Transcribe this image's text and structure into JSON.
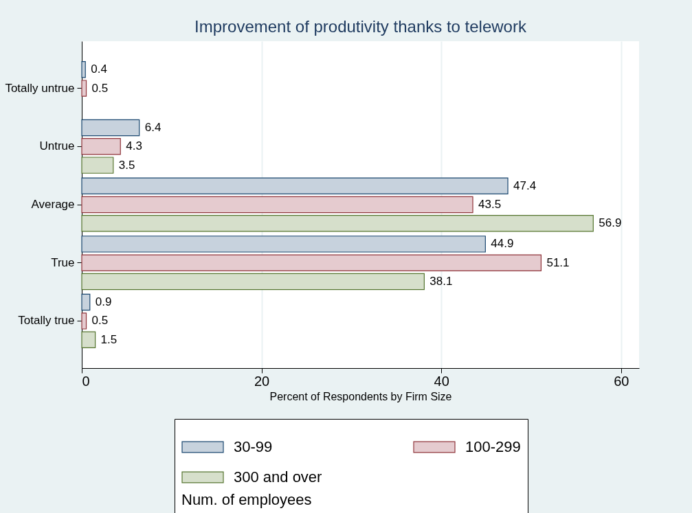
{
  "chart_data": {
    "type": "bar",
    "orientation": "horizontal",
    "title": "Improvement of produtivity thanks to telework",
    "xlabel": "Percent of Respondents by Firm Size",
    "legend_title": "Num. of employees",
    "categories": [
      "Totally untrue",
      "Untrue",
      "Average",
      "True",
      "Totally true"
    ],
    "series": [
      {
        "name": "30-99",
        "color": "#c7d2dd",
        "values": [
          0.4,
          6.4,
          47.4,
          44.9,
          0.9
        ]
      },
      {
        "name": "100-299",
        "color": "#e5cbcf",
        "values": [
          0.5,
          4.3,
          43.5,
          51.1,
          0.5
        ]
      },
      {
        "name": "300 and over",
        "color": "#d6dfcb",
        "values": [
          null,
          3.5,
          56.9,
          38.1,
          1.5
        ]
      }
    ],
    "xlim": [
      0,
      62
    ],
    "xticks": [
      0,
      20,
      40,
      60
    ],
    "grid": "x",
    "legend": "bottom",
    "data_labels": true
  }
}
